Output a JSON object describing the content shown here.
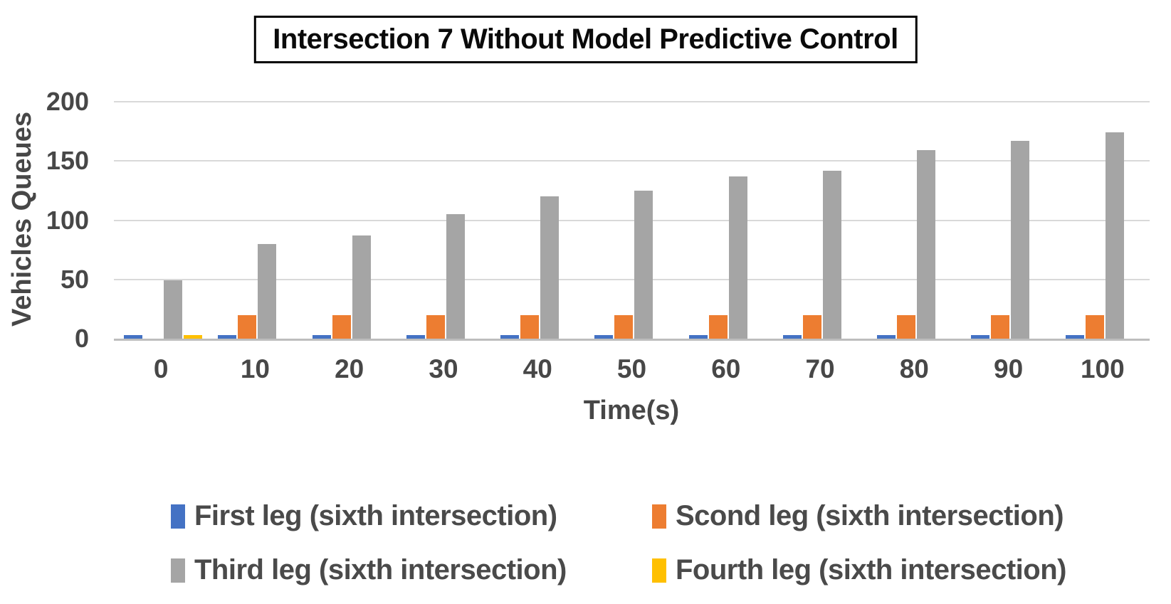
{
  "chart_data": {
    "type": "bar",
    "title": "Intersection 7 Without Model Predictive Control",
    "xlabel": "Time(s)",
    "ylabel": "Vehicles Queues",
    "categories": [
      0,
      10,
      20,
      30,
      40,
      50,
      60,
      70,
      80,
      90,
      100
    ],
    "series": [
      {
        "name": "First leg (sixth  intersection)",
        "color": "#4472C4",
        "values": [
          3,
          3,
          3,
          3,
          3,
          3,
          3,
          3,
          3,
          3,
          3
        ]
      },
      {
        "name": "Scond leg (sixth  intersection)",
        "color": "#ED7D31",
        "values": [
          0,
          20,
          20,
          20,
          20,
          20,
          20,
          20,
          20,
          20,
          20
        ]
      },
      {
        "name": "Third leg (sixth  intersection)",
        "color": "#A5A5A5",
        "values": [
          49,
          80,
          87,
          105,
          120,
          125,
          137,
          142,
          159,
          167,
          174
        ]
      },
      {
        "name": "Fourth leg (sixth  intersection)",
        "color": "#FFC000",
        "values": [
          3,
          0,
          0,
          0,
          0,
          0,
          0,
          0,
          0,
          0,
          0
        ]
      }
    ],
    "ylim": [
      0,
      200
    ],
    "yticks": [
      0,
      50,
      100,
      150,
      200
    ],
    "grid": true,
    "legend_position": "bottom"
  }
}
